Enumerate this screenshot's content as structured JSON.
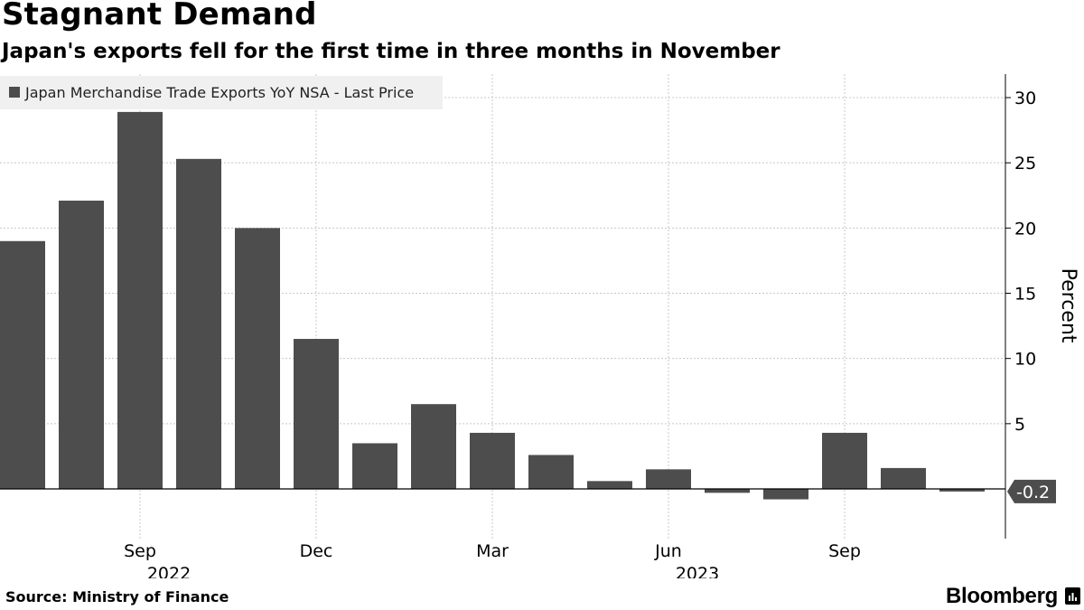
{
  "title": "Stagnant Demand",
  "subtitle": "Japan's exports fell for the first time in three months in November",
  "source": "Source:  Ministry of Finance",
  "brand": "Bloomberg",
  "colors": {
    "bar": "#4d4d4d",
    "grid": "#c8c8c8",
    "legend_bg": "#f0f0f0",
    "callout": "#4d4d4d",
    "callout_text": "#ffffff"
  },
  "chart_data": {
    "type": "bar",
    "legend": {
      "placement": "top-left",
      "entries": [
        "Japan Merchandise Trade Exports YoY NSA - Last Price"
      ]
    },
    "ylabel": "Percent",
    "ylim": [
      -3.8,
      31.5
    ],
    "yticks": [
      30,
      25,
      20,
      15,
      10,
      5
    ],
    "grid": true,
    "categories": [
      "2022-07",
      "2022-08",
      "2022-09",
      "2022-10",
      "2022-11",
      "2022-12",
      "2023-01",
      "2023-02",
      "2023-03",
      "2023-04",
      "2023-05",
      "2023-06",
      "2023-07",
      "2023-08",
      "2023-09",
      "2023-10",
      "2023-11"
    ],
    "series": [
      {
        "name": "Japan Merchandise Trade Exports YoY NSA - Last Price",
        "values": [
          19.0,
          22.1,
          28.9,
          25.3,
          20.0,
          11.5,
          3.5,
          6.5,
          4.3,
          2.6,
          0.6,
          1.5,
          -0.3,
          -0.8,
          4.3,
          1.6,
          -0.2
        ]
      }
    ],
    "x_tick_labels": [
      {
        "category": "2022-09",
        "label": "Sep"
      },
      {
        "category": "2022-12",
        "label": "Dec"
      },
      {
        "category": "2023-03",
        "label": "Mar"
      },
      {
        "category": "2023-06",
        "label": "Jun"
      },
      {
        "category": "2023-09",
        "label": "Sep"
      }
    ],
    "year_labels": [
      {
        "category": "2022-09",
        "label": "2022"
      },
      {
        "category": "2023-06",
        "label": "2023"
      }
    ],
    "last_value_label": "-0.2"
  }
}
